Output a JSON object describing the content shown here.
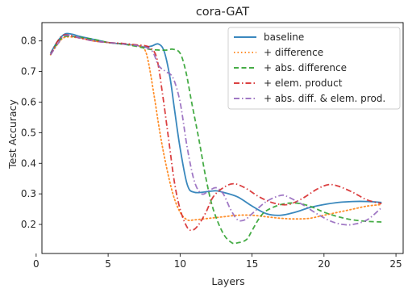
{
  "chart_data": {
    "type": "line",
    "title": "cora-GAT",
    "xlabel": "Layers",
    "ylabel": "Test Accuracy",
    "xlim": [
      0.4,
      25.5
    ],
    "ylim": [
      0.105,
      0.86
    ],
    "xticks": [
      0,
      5,
      10,
      15,
      20,
      25
    ],
    "yticks": [
      0.2,
      0.3,
      0.4,
      0.5,
      0.6,
      0.7,
      0.8
    ],
    "grid": false,
    "legend_position": "top-right",
    "series": [
      {
        "name": "baseline",
        "color": "#1f77b4",
        "dash": "solid",
        "points": [
          [
            1,
            0.76
          ],
          [
            1.5,
            0.8
          ],
          [
            2,
            0.823
          ],
          [
            2.5,
            0.822
          ],
          [
            3,
            0.815
          ],
          [
            4,
            0.805
          ],
          [
            5,
            0.795
          ],
          [
            6,
            0.79
          ],
          [
            7,
            0.785
          ],
          [
            7.5,
            0.78
          ],
          [
            8,
            0.783
          ],
          [
            8.5,
            0.79
          ],
          [
            8.9,
            0.765
          ],
          [
            9.3,
            0.68
          ],
          [
            9.6,
            0.58
          ],
          [
            10,
            0.45
          ],
          [
            10.5,
            0.33
          ],
          [
            11,
            0.305
          ],
          [
            12,
            0.308
          ],
          [
            12.5,
            0.31
          ],
          [
            13,
            0.305
          ],
          [
            14,
            0.29
          ],
          [
            15,
            0.26
          ],
          [
            16,
            0.235
          ],
          [
            17,
            0.23
          ],
          [
            18,
            0.24
          ],
          [
            19,
            0.255
          ],
          [
            20,
            0.265
          ],
          [
            21,
            0.272
          ],
          [
            22,
            0.275
          ],
          [
            23,
            0.275
          ],
          [
            24,
            0.272
          ]
        ]
      },
      {
        "name": "+ difference",
        "color": "#ff7f0e",
        "dash": "dotted",
        "points": [
          [
            1,
            0.755
          ],
          [
            1.5,
            0.79
          ],
          [
            2,
            0.812
          ],
          [
            3,
            0.81
          ],
          [
            4,
            0.8
          ],
          [
            5,
            0.795
          ],
          [
            6,
            0.79
          ],
          [
            7,
            0.785
          ],
          [
            7.5,
            0.775
          ],
          [
            7.8,
            0.73
          ],
          [
            8.2,
            0.62
          ],
          [
            8.6,
            0.5
          ],
          [
            9,
            0.4
          ],
          [
            9.5,
            0.3
          ],
          [
            10,
            0.24
          ],
          [
            10.5,
            0.215
          ],
          [
            11,
            0.215
          ],
          [
            12,
            0.22
          ],
          [
            13,
            0.225
          ],
          [
            14,
            0.23
          ],
          [
            15,
            0.23
          ],
          [
            16,
            0.225
          ],
          [
            17,
            0.22
          ],
          [
            18,
            0.218
          ],
          [
            19,
            0.22
          ],
          [
            20,
            0.23
          ],
          [
            21,
            0.24
          ],
          [
            22,
            0.25
          ],
          [
            23,
            0.26
          ],
          [
            24,
            0.265
          ]
        ]
      },
      {
        "name": "+ abs. difference",
        "color": "#2ca02c",
        "dash": "dashed",
        "points": [
          [
            1,
            0.755
          ],
          [
            1.5,
            0.795
          ],
          [
            2,
            0.815
          ],
          [
            3,
            0.812
          ],
          [
            4,
            0.805
          ],
          [
            5,
            0.795
          ],
          [
            6,
            0.79
          ],
          [
            7,
            0.782
          ],
          [
            8,
            0.772
          ],
          [
            9,
            0.77
          ],
          [
            9.5,
            0.773
          ],
          [
            10,
            0.76
          ],
          [
            10.4,
            0.7
          ],
          [
            10.8,
            0.6
          ],
          [
            11.3,
            0.48
          ],
          [
            11.8,
            0.35
          ],
          [
            12.3,
            0.25
          ],
          [
            13,
            0.17
          ],
          [
            13.6,
            0.14
          ],
          [
            14,
            0.14
          ],
          [
            14.6,
            0.15
          ],
          [
            15,
            0.18
          ],
          [
            15.5,
            0.22
          ],
          [
            16,
            0.245
          ],
          [
            17,
            0.265
          ],
          [
            18,
            0.27
          ],
          [
            19,
            0.26
          ],
          [
            20,
            0.24
          ],
          [
            21,
            0.225
          ],
          [
            22,
            0.215
          ],
          [
            23,
            0.21
          ],
          [
            24,
            0.208
          ]
        ]
      },
      {
        "name": "+ elem. product",
        "color": "#d62728",
        "dash": "dashdot",
        "points": [
          [
            1,
            0.755
          ],
          [
            1.5,
            0.8
          ],
          [
            2,
            0.82
          ],
          [
            3,
            0.81
          ],
          [
            4,
            0.8
          ],
          [
            5,
            0.795
          ],
          [
            6,
            0.792
          ],
          [
            7,
            0.787
          ],
          [
            7.5,
            0.785
          ],
          [
            8,
            0.775
          ],
          [
            8.4,
            0.74
          ],
          [
            8.8,
            0.62
          ],
          [
            9.2,
            0.48
          ],
          [
            9.6,
            0.34
          ],
          [
            10,
            0.25
          ],
          [
            10.5,
            0.19
          ],
          [
            10.9,
            0.182
          ],
          [
            11.3,
            0.2
          ],
          [
            11.8,
            0.24
          ],
          [
            12.3,
            0.29
          ],
          [
            13,
            0.32
          ],
          [
            13.7,
            0.333
          ],
          [
            14.5,
            0.32
          ],
          [
            15.5,
            0.29
          ],
          [
            16.5,
            0.27
          ],
          [
            17.5,
            0.265
          ],
          [
            18.5,
            0.285
          ],
          [
            19.5,
            0.315
          ],
          [
            20.3,
            0.33
          ],
          [
            21,
            0.325
          ],
          [
            22,
            0.305
          ],
          [
            23,
            0.28
          ],
          [
            24,
            0.268
          ]
        ]
      },
      {
        "name": "+ abs. diff. & elem. prod.",
        "color": "#9467bd",
        "dash": "dashdot",
        "points": [
          [
            1,
            0.755
          ],
          [
            1.5,
            0.79
          ],
          [
            2,
            0.818
          ],
          [
            3,
            0.81
          ],
          [
            4,
            0.8
          ],
          [
            5,
            0.795
          ],
          [
            6,
            0.79
          ],
          [
            7,
            0.785
          ],
          [
            8,
            0.77
          ],
          [
            8.5,
            0.72
          ],
          [
            9,
            0.7
          ],
          [
            9.5,
            0.68
          ],
          [
            10,
            0.6
          ],
          [
            10.5,
            0.45
          ],
          [
            11,
            0.34
          ],
          [
            11.5,
            0.3
          ],
          [
            12,
            0.31
          ],
          [
            12.5,
            0.32
          ],
          [
            13,
            0.3
          ],
          [
            13.5,
            0.25
          ],
          [
            14,
            0.215
          ],
          [
            14.5,
            0.215
          ],
          [
            15,
            0.235
          ],
          [
            16,
            0.275
          ],
          [
            17,
            0.295
          ],
          [
            17.5,
            0.29
          ],
          [
            18.5,
            0.265
          ],
          [
            19.5,
            0.235
          ],
          [
            20.5,
            0.21
          ],
          [
            21.3,
            0.2
          ],
          [
            22,
            0.2
          ],
          [
            23,
            0.215
          ],
          [
            24,
            0.255
          ]
        ]
      }
    ]
  }
}
